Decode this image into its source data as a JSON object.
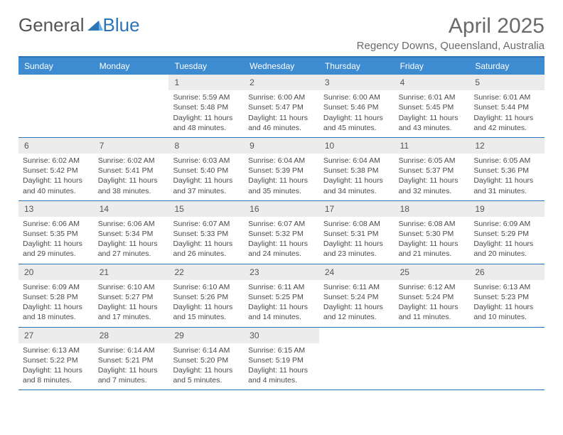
{
  "logo_general": "General",
  "logo_blue": "Blue",
  "month_title": "April 2025",
  "location": "Regency Downs, Queensland, Australia",
  "colors": {
    "header_bg": "#3d8bd0",
    "border": "#2d73b8",
    "daynum_bg": "#ececec",
    "text": "#4a4a4a"
  },
  "weekdays": [
    "Sunday",
    "Monday",
    "Tuesday",
    "Wednesday",
    "Thursday",
    "Friday",
    "Saturday"
  ],
  "weeks": [
    [
      {
        "num": "",
        "sunrise": "",
        "sunset": "",
        "daylight": ""
      },
      {
        "num": "",
        "sunrise": "",
        "sunset": "",
        "daylight": ""
      },
      {
        "num": "1",
        "sunrise": "Sunrise: 5:59 AM",
        "sunset": "Sunset: 5:48 PM",
        "daylight": "Daylight: 11 hours and 48 minutes."
      },
      {
        "num": "2",
        "sunrise": "Sunrise: 6:00 AM",
        "sunset": "Sunset: 5:47 PM",
        "daylight": "Daylight: 11 hours and 46 minutes."
      },
      {
        "num": "3",
        "sunrise": "Sunrise: 6:00 AM",
        "sunset": "Sunset: 5:46 PM",
        "daylight": "Daylight: 11 hours and 45 minutes."
      },
      {
        "num": "4",
        "sunrise": "Sunrise: 6:01 AM",
        "sunset": "Sunset: 5:45 PM",
        "daylight": "Daylight: 11 hours and 43 minutes."
      },
      {
        "num": "5",
        "sunrise": "Sunrise: 6:01 AM",
        "sunset": "Sunset: 5:44 PM",
        "daylight": "Daylight: 11 hours and 42 minutes."
      }
    ],
    [
      {
        "num": "6",
        "sunrise": "Sunrise: 6:02 AM",
        "sunset": "Sunset: 5:42 PM",
        "daylight": "Daylight: 11 hours and 40 minutes."
      },
      {
        "num": "7",
        "sunrise": "Sunrise: 6:02 AM",
        "sunset": "Sunset: 5:41 PM",
        "daylight": "Daylight: 11 hours and 38 minutes."
      },
      {
        "num": "8",
        "sunrise": "Sunrise: 6:03 AM",
        "sunset": "Sunset: 5:40 PM",
        "daylight": "Daylight: 11 hours and 37 minutes."
      },
      {
        "num": "9",
        "sunrise": "Sunrise: 6:04 AM",
        "sunset": "Sunset: 5:39 PM",
        "daylight": "Daylight: 11 hours and 35 minutes."
      },
      {
        "num": "10",
        "sunrise": "Sunrise: 6:04 AM",
        "sunset": "Sunset: 5:38 PM",
        "daylight": "Daylight: 11 hours and 34 minutes."
      },
      {
        "num": "11",
        "sunrise": "Sunrise: 6:05 AM",
        "sunset": "Sunset: 5:37 PM",
        "daylight": "Daylight: 11 hours and 32 minutes."
      },
      {
        "num": "12",
        "sunrise": "Sunrise: 6:05 AM",
        "sunset": "Sunset: 5:36 PM",
        "daylight": "Daylight: 11 hours and 31 minutes."
      }
    ],
    [
      {
        "num": "13",
        "sunrise": "Sunrise: 6:06 AM",
        "sunset": "Sunset: 5:35 PM",
        "daylight": "Daylight: 11 hours and 29 minutes."
      },
      {
        "num": "14",
        "sunrise": "Sunrise: 6:06 AM",
        "sunset": "Sunset: 5:34 PM",
        "daylight": "Daylight: 11 hours and 27 minutes."
      },
      {
        "num": "15",
        "sunrise": "Sunrise: 6:07 AM",
        "sunset": "Sunset: 5:33 PM",
        "daylight": "Daylight: 11 hours and 26 minutes."
      },
      {
        "num": "16",
        "sunrise": "Sunrise: 6:07 AM",
        "sunset": "Sunset: 5:32 PM",
        "daylight": "Daylight: 11 hours and 24 minutes."
      },
      {
        "num": "17",
        "sunrise": "Sunrise: 6:08 AM",
        "sunset": "Sunset: 5:31 PM",
        "daylight": "Daylight: 11 hours and 23 minutes."
      },
      {
        "num": "18",
        "sunrise": "Sunrise: 6:08 AM",
        "sunset": "Sunset: 5:30 PM",
        "daylight": "Daylight: 11 hours and 21 minutes."
      },
      {
        "num": "19",
        "sunrise": "Sunrise: 6:09 AM",
        "sunset": "Sunset: 5:29 PM",
        "daylight": "Daylight: 11 hours and 20 minutes."
      }
    ],
    [
      {
        "num": "20",
        "sunrise": "Sunrise: 6:09 AM",
        "sunset": "Sunset: 5:28 PM",
        "daylight": "Daylight: 11 hours and 18 minutes."
      },
      {
        "num": "21",
        "sunrise": "Sunrise: 6:10 AM",
        "sunset": "Sunset: 5:27 PM",
        "daylight": "Daylight: 11 hours and 17 minutes."
      },
      {
        "num": "22",
        "sunrise": "Sunrise: 6:10 AM",
        "sunset": "Sunset: 5:26 PM",
        "daylight": "Daylight: 11 hours and 15 minutes."
      },
      {
        "num": "23",
        "sunrise": "Sunrise: 6:11 AM",
        "sunset": "Sunset: 5:25 PM",
        "daylight": "Daylight: 11 hours and 14 minutes."
      },
      {
        "num": "24",
        "sunrise": "Sunrise: 6:11 AM",
        "sunset": "Sunset: 5:24 PM",
        "daylight": "Daylight: 11 hours and 12 minutes."
      },
      {
        "num": "25",
        "sunrise": "Sunrise: 6:12 AM",
        "sunset": "Sunset: 5:24 PM",
        "daylight": "Daylight: 11 hours and 11 minutes."
      },
      {
        "num": "26",
        "sunrise": "Sunrise: 6:13 AM",
        "sunset": "Sunset: 5:23 PM",
        "daylight": "Daylight: 11 hours and 10 minutes."
      }
    ],
    [
      {
        "num": "27",
        "sunrise": "Sunrise: 6:13 AM",
        "sunset": "Sunset: 5:22 PM",
        "daylight": "Daylight: 11 hours and 8 minutes."
      },
      {
        "num": "28",
        "sunrise": "Sunrise: 6:14 AM",
        "sunset": "Sunset: 5:21 PM",
        "daylight": "Daylight: 11 hours and 7 minutes."
      },
      {
        "num": "29",
        "sunrise": "Sunrise: 6:14 AM",
        "sunset": "Sunset: 5:20 PM",
        "daylight": "Daylight: 11 hours and 5 minutes."
      },
      {
        "num": "30",
        "sunrise": "Sunrise: 6:15 AM",
        "sunset": "Sunset: 5:19 PM",
        "daylight": "Daylight: 11 hours and 4 minutes."
      },
      {
        "num": "",
        "sunrise": "",
        "sunset": "",
        "daylight": ""
      },
      {
        "num": "",
        "sunrise": "",
        "sunset": "",
        "daylight": ""
      },
      {
        "num": "",
        "sunrise": "",
        "sunset": "",
        "daylight": ""
      }
    ]
  ]
}
